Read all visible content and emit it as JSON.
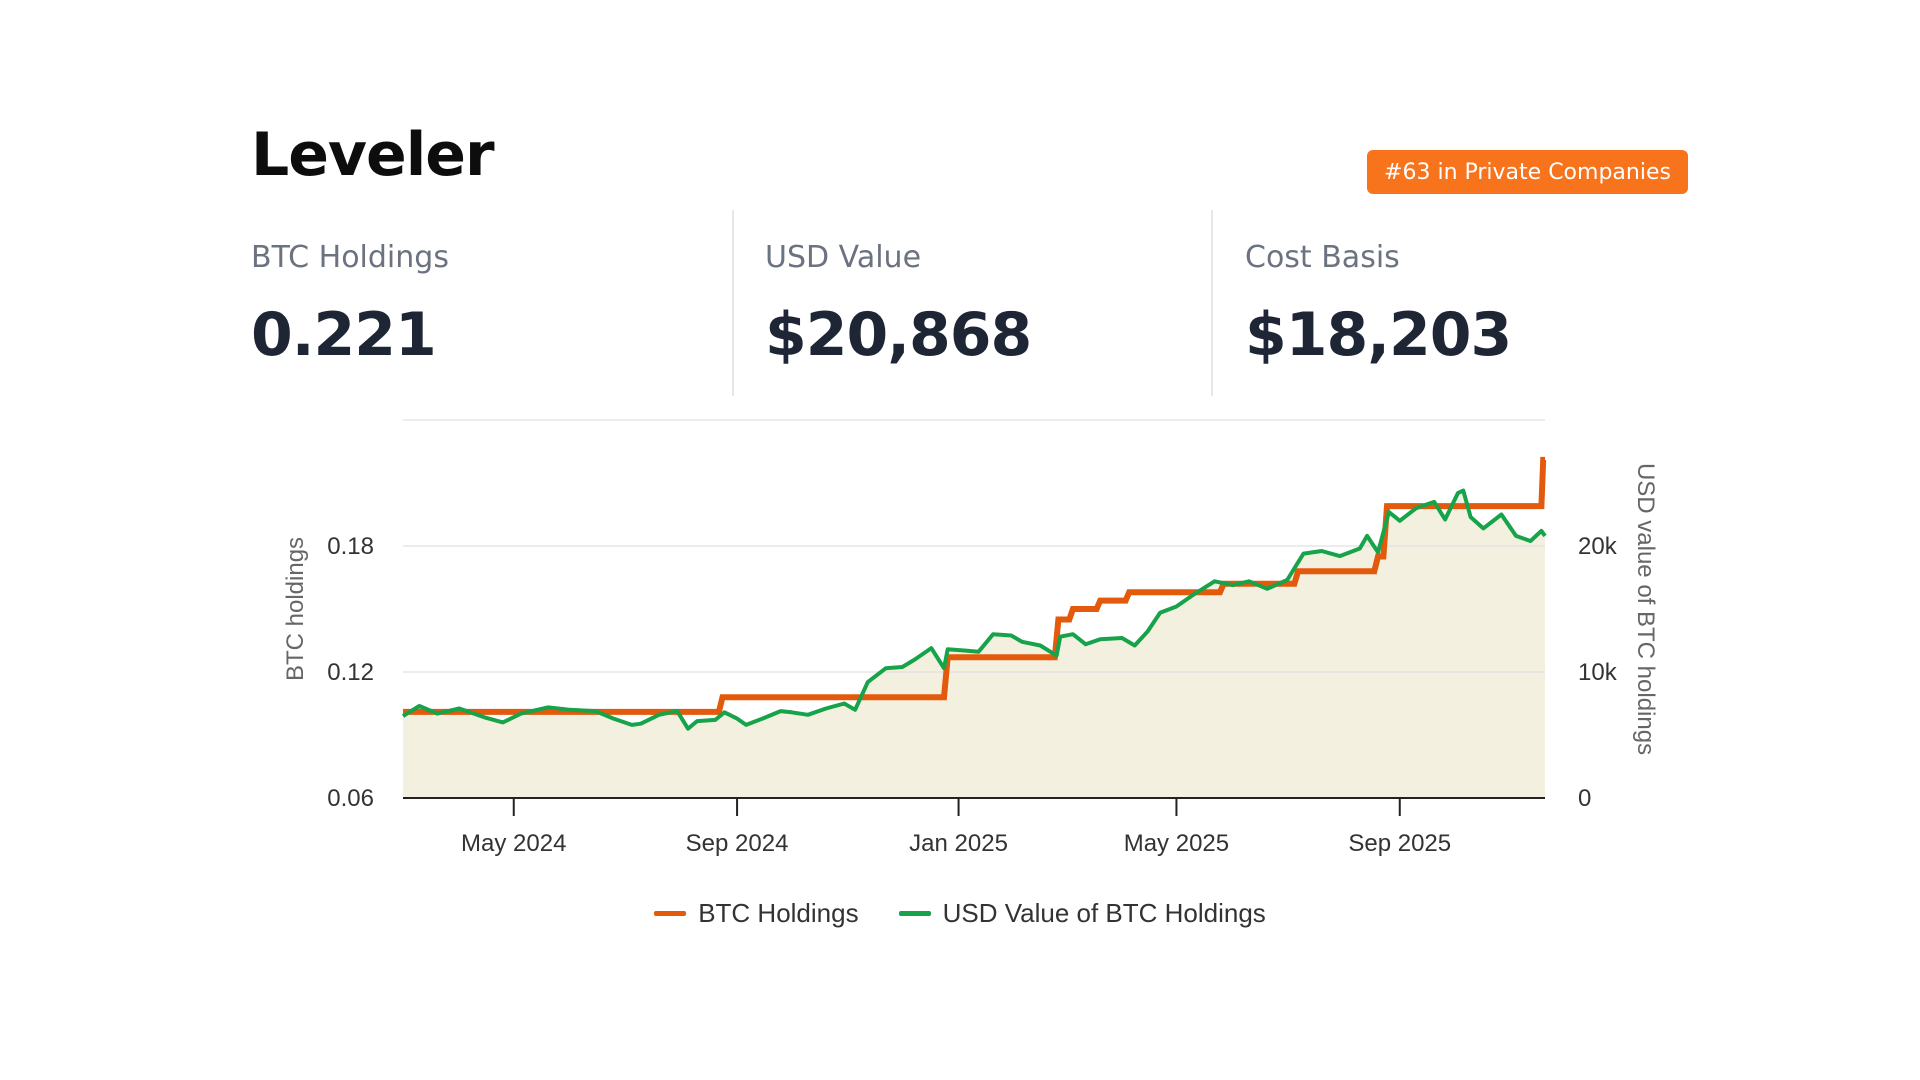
{
  "header": {
    "title": "Leveler",
    "rank_badge": "#63 in Private Companies"
  },
  "stats": [
    {
      "label": "BTC Holdings",
      "value": "0.221"
    },
    {
      "label": "USD Value",
      "value": "$20,868"
    },
    {
      "label": "Cost Basis",
      "value": "$18,203"
    }
  ],
  "colors": {
    "btc_line": "#e35a0c",
    "usd_line": "#16a34a",
    "area_fill": "#f3f0df",
    "badge": "#f7731c"
  },
  "chart_data": {
    "type": "line",
    "ylabel": "BTC holdings",
    "y2label": "USD value of BTC holdings",
    "ylim": [
      0.06,
      0.24
    ],
    "y2lim": [
      0,
      30000
    ],
    "yticks": [
      0.06,
      0.12,
      0.18
    ],
    "yticklabels": [
      "0.06",
      "0.12",
      "0.18"
    ],
    "y2ticks": [
      0,
      10000,
      20000
    ],
    "y2ticklabels": [
      "0",
      "10k",
      "20k"
    ],
    "xlim": [
      "2024-03-01",
      "2025-11-20"
    ],
    "xticks": [
      "2024-05-01",
      "2024-09-01",
      "2025-01-01",
      "2025-05-01",
      "2025-09-01"
    ],
    "xticklabels": [
      "May 2024",
      "Sep 2024",
      "Jan 2025",
      "May 2025",
      "Sep 2025"
    ],
    "grid": true,
    "legend_position": "bottom",
    "series": [
      {
        "name": "BTC Holdings",
        "axis": "left",
        "step": true,
        "points": [
          [
            "2024-03-01",
            0.101
          ],
          [
            "2024-08-22",
            0.101
          ],
          [
            "2024-08-24",
            0.108
          ],
          [
            "2024-12-24",
            0.108
          ],
          [
            "2024-12-26",
            0.127
          ],
          [
            "2025-02-23",
            0.127
          ],
          [
            "2025-02-25",
            0.145
          ],
          [
            "2025-03-03",
            0.145
          ],
          [
            "2025-03-05",
            0.15
          ],
          [
            "2025-03-18",
            0.15
          ],
          [
            "2025-03-20",
            0.154
          ],
          [
            "2025-04-03",
            0.154
          ],
          [
            "2025-04-05",
            0.158
          ],
          [
            "2025-05-25",
            0.158
          ],
          [
            "2025-05-27",
            0.162
          ],
          [
            "2025-07-05",
            0.162
          ],
          [
            "2025-07-07",
            0.168
          ],
          [
            "2025-08-18",
            0.168
          ],
          [
            "2025-08-20",
            0.175
          ],
          [
            "2025-08-23",
            0.175
          ],
          [
            "2025-08-25",
            0.199
          ],
          [
            "2025-11-18",
            0.199
          ],
          [
            "2025-11-19",
            0.221
          ],
          [
            "2025-11-20",
            0.221
          ]
        ]
      },
      {
        "name": "USD Value of BTC Holdings",
        "axis": "right",
        "points": [
          [
            "2024-03-01",
            6500
          ],
          [
            "2024-03-10",
            7300
          ],
          [
            "2024-03-20",
            6700
          ],
          [
            "2024-04-01",
            7100
          ],
          [
            "2024-04-15",
            6400
          ],
          [
            "2024-04-25",
            6000
          ],
          [
            "2024-05-05",
            6700
          ],
          [
            "2024-05-20",
            7200
          ],
          [
            "2024-06-01",
            7000
          ],
          [
            "2024-06-15",
            6900
          ],
          [
            "2024-06-25",
            6300
          ],
          [
            "2024-07-05",
            5800
          ],
          [
            "2024-07-10",
            5900
          ],
          [
            "2024-07-20",
            6600
          ],
          [
            "2024-07-30",
            6900
          ],
          [
            "2024-08-05",
            5500
          ],
          [
            "2024-08-10",
            6100
          ],
          [
            "2024-08-20",
            6200
          ],
          [
            "2024-08-25",
            6800
          ],
          [
            "2024-09-01",
            6300
          ],
          [
            "2024-09-06",
            5800
          ],
          [
            "2024-09-15",
            6300
          ],
          [
            "2024-09-25",
            6900
          ],
          [
            "2024-10-01",
            6800
          ],
          [
            "2024-10-10",
            6600
          ],
          [
            "2024-10-20",
            7100
          ],
          [
            "2024-10-30",
            7500
          ],
          [
            "2024-11-05",
            7000
          ],
          [
            "2024-11-12",
            9200
          ],
          [
            "2024-11-22",
            10300
          ],
          [
            "2024-12-01",
            10400
          ],
          [
            "2024-12-08",
            11000
          ],
          [
            "2024-12-17",
            11900
          ],
          [
            "2024-12-24",
            10300
          ],
          [
            "2024-12-26",
            11800
          ],
          [
            "2025-01-05",
            11700
          ],
          [
            "2025-01-12",
            11600
          ],
          [
            "2025-01-20",
            13000
          ],
          [
            "2025-01-30",
            12900
          ],
          [
            "2025-02-05",
            12400
          ],
          [
            "2025-02-15",
            12100
          ],
          [
            "2025-02-24",
            11300
          ],
          [
            "2025-02-26",
            12800
          ],
          [
            "2025-03-05",
            13000
          ],
          [
            "2025-03-12",
            12200
          ],
          [
            "2025-03-20",
            12600
          ],
          [
            "2025-04-01",
            12700
          ],
          [
            "2025-04-08",
            12100
          ],
          [
            "2025-04-15",
            13200
          ],
          [
            "2025-04-22",
            14700
          ],
          [
            "2025-05-01",
            15200
          ],
          [
            "2025-05-10",
            16100
          ],
          [
            "2025-05-22",
            17200
          ],
          [
            "2025-06-01",
            16900
          ],
          [
            "2025-06-10",
            17200
          ],
          [
            "2025-06-20",
            16600
          ],
          [
            "2025-07-01",
            17300
          ],
          [
            "2025-07-10",
            19400
          ],
          [
            "2025-07-20",
            19600
          ],
          [
            "2025-07-30",
            19200
          ],
          [
            "2025-08-10",
            19800
          ],
          [
            "2025-08-14",
            20800
          ],
          [
            "2025-08-20",
            19500
          ],
          [
            "2025-08-26",
            22700
          ],
          [
            "2025-09-01",
            22000
          ],
          [
            "2025-09-10",
            23000
          ],
          [
            "2025-09-20",
            23500
          ],
          [
            "2025-09-26",
            22100
          ],
          [
            "2025-10-03",
            24200
          ],
          [
            "2025-10-06",
            24400
          ],
          [
            "2025-10-10",
            22300
          ],
          [
            "2025-10-17",
            21400
          ],
          [
            "2025-10-27",
            22500
          ],
          [
            "2025-11-04",
            20800
          ],
          [
            "2025-11-12",
            20400
          ],
          [
            "2025-11-18",
            21200
          ],
          [
            "2025-11-20",
            20800
          ]
        ]
      }
    ]
  }
}
